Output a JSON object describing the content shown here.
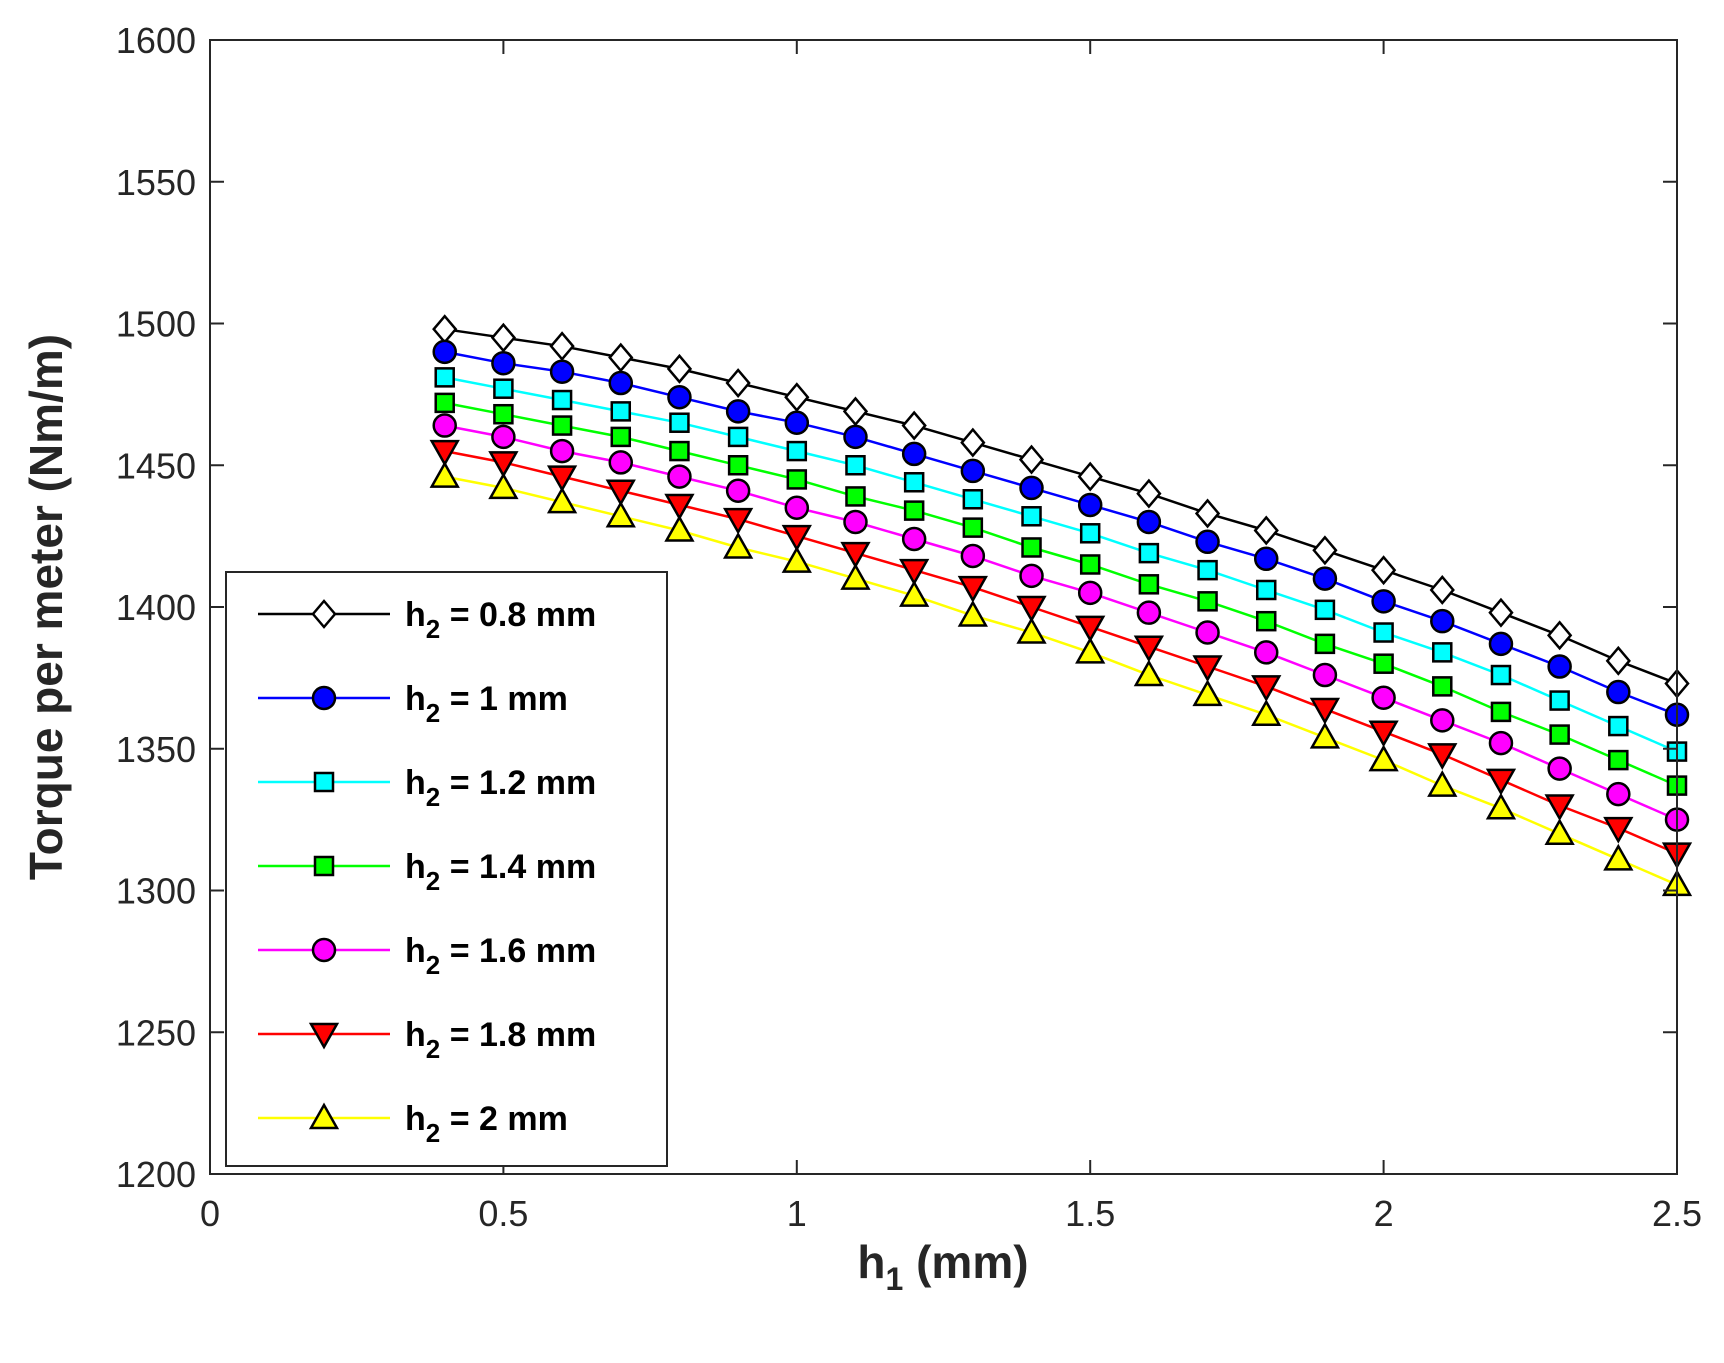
{
  "chart_data": {
    "type": "line",
    "xlabel": {
      "base": "h",
      "sub": "1",
      "rest": " (mm)"
    },
    "ylabel": "Torque per meter (Nm/m)",
    "xlim": [
      0,
      2.5
    ],
    "ylim": [
      1200,
      1600
    ],
    "xticks": [
      0,
      0.5,
      1,
      1.5,
      2,
      2.5
    ],
    "xtick_labels": [
      "0",
      "0.5",
      "1",
      "1.5",
      "2",
      "2.5"
    ],
    "yticks": [
      1200,
      1250,
      1300,
      1350,
      1400,
      1450,
      1500,
      1550,
      1600
    ],
    "ytick_labels": [
      "1200",
      "1250",
      "1300",
      "1350",
      "1400",
      "1450",
      "1500",
      "1550",
      "1600"
    ],
    "legend_position": "lower-left",
    "x": [
      0.4,
      0.5,
      0.6,
      0.7,
      0.8,
      0.9,
      1.0,
      1.1,
      1.2,
      1.3,
      1.4,
      1.5,
      1.6,
      1.7,
      1.8,
      1.9,
      2.0,
      2.1,
      2.2,
      2.3,
      2.4,
      2.5
    ],
    "series": [
      {
        "name": "h2 = 0.8 mm",
        "label_base": "h",
        "label_sub": "2",
        "label_rest": " = 0.8 mm",
        "color": "#000000",
        "marker": "diamond",
        "fill": "#ffffff",
        "values": [
          1498,
          1495,
          1492,
          1488,
          1484,
          1479,
          1474,
          1469,
          1464,
          1458,
          1452,
          1446,
          1440,
          1433,
          1427,
          1420,
          1413,
          1406,
          1398,
          1390,
          1381,
          1373
        ]
      },
      {
        "name": "h2 = 1 mm",
        "label_base": "h",
        "label_sub": "2",
        "label_rest": " = 1 mm",
        "color": "#0000ff",
        "marker": "circle",
        "fill": "#0000ff",
        "values": [
          1490,
          1486,
          1483,
          1479,
          1474,
          1469,
          1465,
          1460,
          1454,
          1448,
          1442,
          1436,
          1430,
          1423,
          1417,
          1410,
          1402,
          1395,
          1387,
          1379,
          1370,
          1362
        ]
      },
      {
        "name": "h2 = 1.2 mm",
        "label_base": "h",
        "label_sub": "2",
        "label_rest": " = 1.2 mm",
        "color": "#00ffff",
        "marker": "square",
        "fill": "#00ffff",
        "values": [
          1481,
          1477,
          1473,
          1469,
          1465,
          1460,
          1455,
          1450,
          1444,
          1438,
          1432,
          1426,
          1419,
          1413,
          1406,
          1399,
          1391,
          1384,
          1376,
          1367,
          1358,
          1349
        ]
      },
      {
        "name": "h2 = 1.4 mm",
        "label_base": "h",
        "label_sub": "2",
        "label_rest": " = 1.4 mm",
        "color": "#00ff00",
        "marker": "square",
        "fill": "#00ff00",
        "values": [
          1472,
          1468,
          1464,
          1460,
          1455,
          1450,
          1445,
          1439,
          1434,
          1428,
          1421,
          1415,
          1408,
          1402,
          1395,
          1387,
          1380,
          1372,
          1363,
          1355,
          1346,
          1337
        ]
      },
      {
        "name": "h2 = 1.6 mm",
        "label_base": "h",
        "label_sub": "2",
        "label_rest": " = 1.6 mm",
        "color": "#ff00ff",
        "marker": "circle",
        "fill": "#ff00ff",
        "values": [
          1464,
          1460,
          1455,
          1451,
          1446,
          1441,
          1435,
          1430,
          1424,
          1418,
          1411,
          1405,
          1398,
          1391,
          1384,
          1376,
          1368,
          1360,
          1352,
          1343,
          1334,
          1325
        ]
      },
      {
        "name": "h2 = 1.8 mm",
        "label_base": "h",
        "label_sub": "2",
        "label_rest": " = 1.8 mm",
        "color": "#ff0000",
        "marker": "triangle-down",
        "fill": "#ff0000",
        "values": [
          1455,
          1451,
          1446,
          1441,
          1436,
          1431,
          1425,
          1419,
          1413,
          1407,
          1400,
          1393,
          1386,
          1379,
          1372,
          1364,
          1356,
          1348,
          1339,
          1330,
          1322,
          1313
        ]
      },
      {
        "name": "h2 = 2 mm",
        "label_base": "h",
        "label_sub": "2",
        "label_rest": " = 2 mm",
        "color": "#ffff00",
        "marker": "triangle-up",
        "fill": "#ffff00",
        "values": [
          1446,
          1442,
          1437,
          1432,
          1427,
          1421,
          1416,
          1410,
          1404,
          1397,
          1391,
          1384,
          1376,
          1369,
          1362,
          1354,
          1346,
          1337,
          1329,
          1320,
          1311,
          1302
        ]
      }
    ]
  }
}
